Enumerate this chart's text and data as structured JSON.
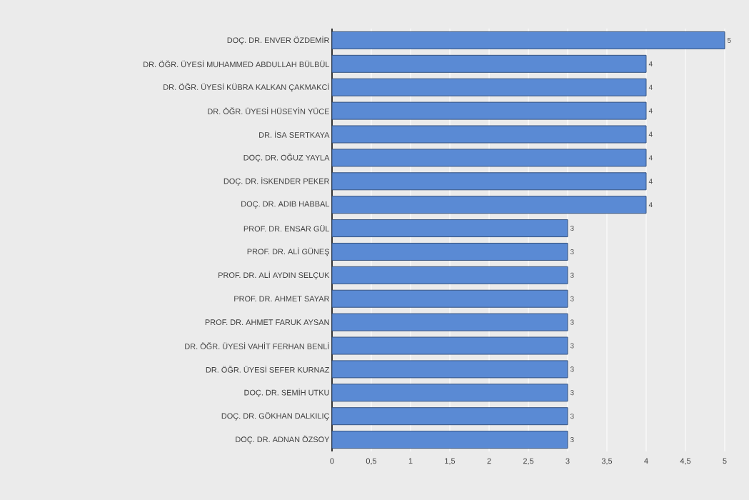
{
  "chart_data": {
    "type": "bar",
    "orientation": "horizontal",
    "categories": [
      "DOÇ. DR. ENVER ÖZDEMİR",
      "DR. ÖĞR. ÜYESİ MUHAMMED ABDULLAH BÜLBÜL",
      "DR. ÖĞR. ÜYESİ KÜBRA KALKAN ÇAKMAKCİ",
      "DR. ÖĞR. ÜYESİ HÜSEYİN YÜCE",
      "DR. İSA SERTKAYA",
      "DOÇ. DR. OĞUZ YAYLA",
      "DOÇ. DR. İSKENDER PEKER",
      "DOÇ. DR. ADIB HABBAL",
      "PROF. DR. ENSAR GÜL",
      "PROF. DR. ALİ GÜNEŞ",
      "PROF. DR. ALİ AYDIN SELÇUK",
      "PROF. DR. AHMET SAYAR",
      "PROF. DR. AHMET FARUK AYSAN",
      "DR. ÖĞR. ÜYESİ VAHİT FERHAN BENLİ",
      "DR. ÖĞR. ÜYESİ SEFER KURNAZ",
      "DOÇ. DR. SEMİH UTKU",
      "DOÇ. DR. GÖKHAN DALKILIÇ",
      "DOÇ. DR. ADNAN ÖZSOY"
    ],
    "values": [
      5,
      4,
      4,
      4,
      4,
      4,
      4,
      4,
      3,
      3,
      3,
      3,
      3,
      3,
      3,
      3,
      3,
      3
    ],
    "color": "#5a8ad4",
    "xlim": [
      0,
      5
    ],
    "xticks": [
      0,
      {
        "value": 0.5,
        "label": "0,5"
      },
      1,
      {
        "value": 1.5,
        "label": "1,5"
      },
      2,
      {
        "value": 2.5,
        "label": "2,5"
      },
      3,
      {
        "value": 3.5,
        "label": "3,5"
      },
      4,
      {
        "value": 4.5,
        "label": "4,5"
      },
      5
    ],
    "grid": "x",
    "data_labels": true
  }
}
